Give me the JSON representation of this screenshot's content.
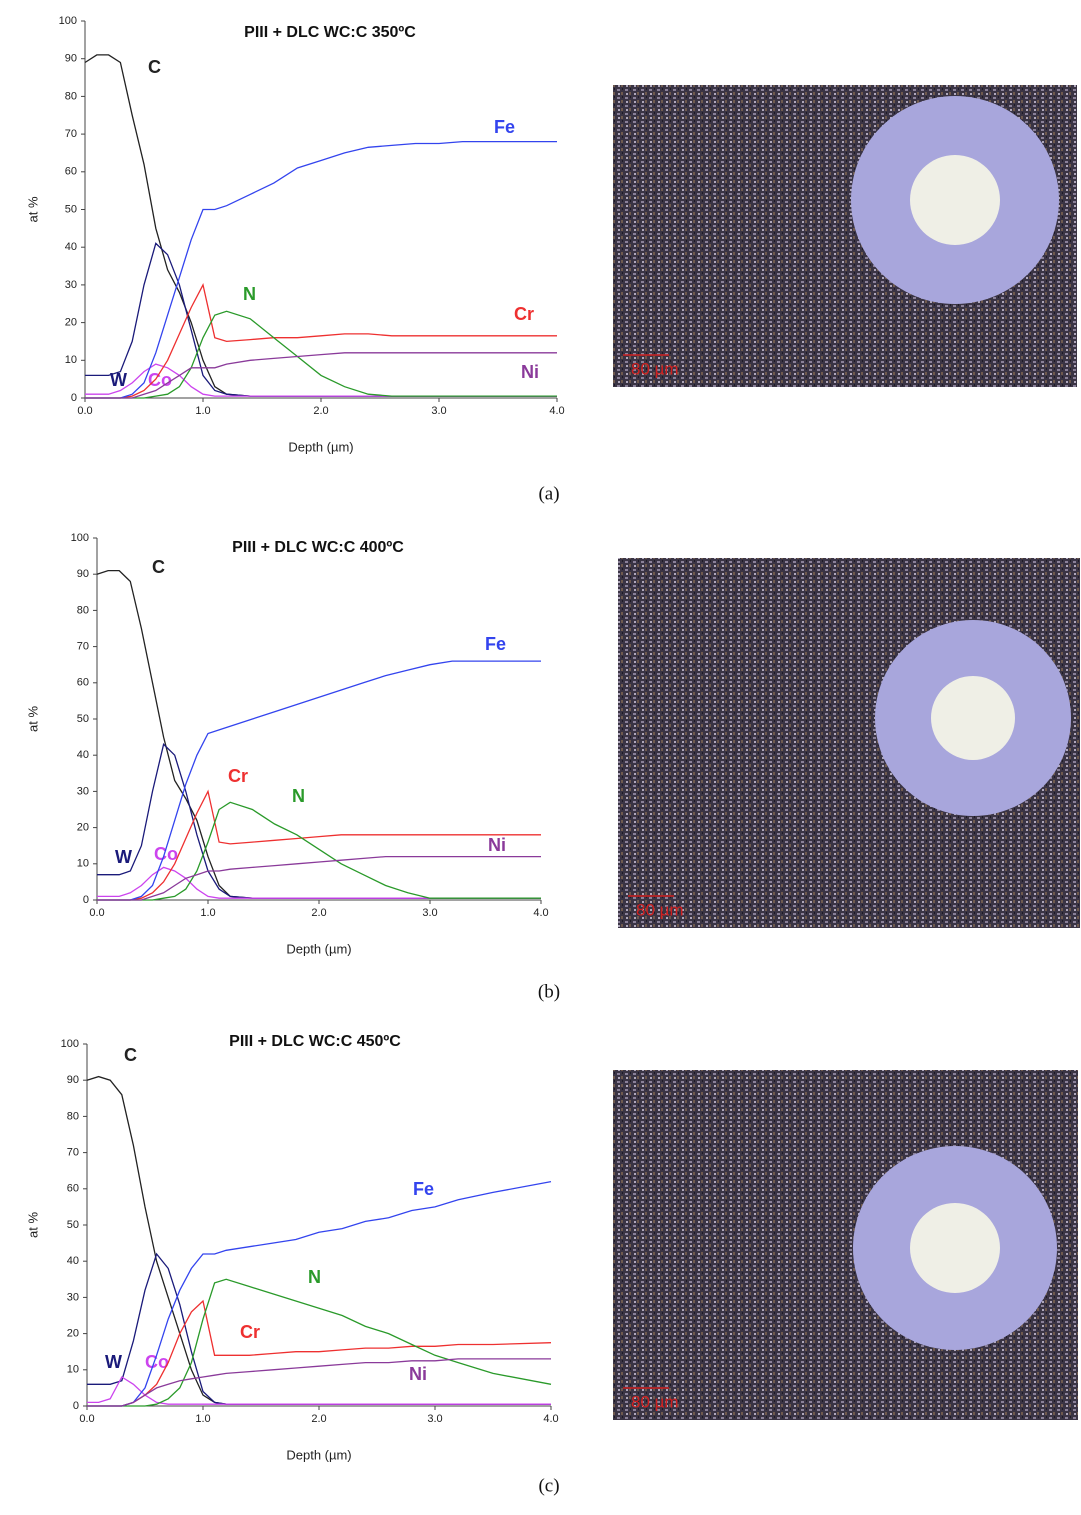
{
  "chart_data": [
    {
      "type": "line",
      "title": "PIII + DLC WC:C 350ºC",
      "x_label": "Depth (µm)",
      "y_label": "at %",
      "panel_label": "(a)",
      "image_scale_bar": "80 µm",
      "xlim": [
        0,
        4
      ],
      "ylim": [
        0,
        100
      ],
      "xticks": [
        {
          "value": 0,
          "label": "0.0"
        },
        {
          "value": 1,
          "label": "1.0"
        },
        {
          "value": 2,
          "label": "2.0"
        },
        {
          "value": 3,
          "label": "3.0"
        },
        {
          "value": 4,
          "label": "4.0"
        }
      ],
      "yticks": [
        0,
        10,
        20,
        30,
        40,
        50,
        60,
        70,
        80,
        90,
        100
      ],
      "x": [
        0,
        0.1,
        0.2,
        0.3,
        0.4,
        0.5,
        0.6,
        0.7,
        0.8,
        0.9,
        1.0,
        1.1,
        1.2,
        1.4,
        1.6,
        1.8,
        2.0,
        2.2,
        2.4,
        2.6,
        2.8,
        3.0,
        3.2,
        3.5,
        4.0
      ],
      "series": [
        {
          "name": "C",
          "color": "#222222",
          "values": [
            89,
            91,
            91,
            89,
            75,
            62,
            45,
            34,
            28,
            20,
            10,
            3,
            1,
            0.5,
            0.5,
            0.5,
            0.5,
            0.5,
            0.5,
            0.5,
            0.5,
            0.5,
            0.5,
            0.5,
            0.5
          ]
        },
        {
          "name": "W",
          "color": "#1a1a7a",
          "values": [
            6,
            6,
            6,
            7,
            15,
            30,
            41,
            38,
            30,
            18,
            6,
            2,
            1,
            0.5,
            0.5,
            0.5,
            0.5,
            0.5,
            0.5,
            0.5,
            0.5,
            0.5,
            0.5,
            0.5,
            0.5
          ]
        },
        {
          "name": "Co",
          "color": "#cc44ee",
          "values": [
            1,
            1,
            1,
            2,
            4,
            7,
            9,
            8,
            6,
            3,
            1,
            0.5,
            0.5,
            0.5,
            0.5,
            0.5,
            0.5,
            0.5,
            0.5,
            0.5,
            0.5,
            0.5,
            0.5,
            0.5,
            0.5
          ]
        },
        {
          "name": "Cr",
          "color": "#ee3030",
          "values": [
            0,
            0,
            0,
            0,
            0.5,
            2,
            5,
            10,
            17,
            24,
            30,
            16,
            15,
            15.5,
            16,
            16,
            16.5,
            17,
            17,
            16.5,
            16.5,
            16.5,
            16.5,
            16.5,
            16.5
          ]
        },
        {
          "name": "N",
          "color": "#2a9a2a",
          "values": [
            0,
            0,
            0,
            0,
            0,
            0,
            0.5,
            1,
            3,
            8,
            16,
            22,
            23,
            21,
            16,
            11,
            6,
            3,
            1,
            0.5,
            0.5,
            0.5,
            0.5,
            0.5,
            0.5
          ]
        },
        {
          "name": "Fe",
          "color": "#3344ee",
          "values": [
            0,
            0,
            0,
            0,
            1,
            4,
            12,
            22,
            32,
            42,
            50,
            50,
            51,
            54,
            57,
            61,
            63,
            65,
            66.5,
            67,
            67.5,
            67.5,
            68,
            68,
            68
          ]
        },
        {
          "name": "Ni",
          "color": "#8a3a9a",
          "values": [
            0,
            0,
            0,
            0,
            0,
            1,
            2,
            4,
            6,
            8,
            8,
            8,
            9,
            10,
            10.5,
            11,
            11.5,
            12,
            12,
            12,
            12,
            12,
            12,
            12,
            12
          ]
        }
      ]
    },
    {
      "type": "line",
      "title": "PIII + DLC WC:C 400ºC",
      "x_label": "Depth (µm)",
      "y_label": "at %",
      "panel_label": "(b)",
      "image_scale_bar": "80 µm",
      "xlim": [
        0,
        4
      ],
      "ylim": [
        0,
        100
      ],
      "xticks": [
        {
          "value": 0,
          "label": "0.0"
        },
        {
          "value": 1,
          "label": "1.0"
        },
        {
          "value": 2,
          "label": "2.0"
        },
        {
          "value": 3,
          "label": "3.0"
        },
        {
          "value": 4,
          "label": "4.0"
        }
      ],
      "yticks": [
        0,
        10,
        20,
        30,
        40,
        50,
        60,
        70,
        80,
        90,
        100
      ],
      "x": [
        0,
        0.1,
        0.2,
        0.3,
        0.4,
        0.5,
        0.6,
        0.7,
        0.8,
        0.9,
        1.0,
        1.1,
        1.2,
        1.4,
        1.6,
        1.8,
        2.0,
        2.2,
        2.4,
        2.6,
        2.8,
        3.0,
        3.2,
        3.5,
        4.0
      ],
      "series": [
        {
          "name": "C",
          "color": "#222222",
          "values": [
            90,
            91,
            91,
            88,
            75,
            60,
            45,
            33,
            28,
            22,
            12,
            4,
            1,
            0.5,
            0.5,
            0.5,
            0.5,
            0.5,
            0.5,
            0.5,
            0.5,
            0.5,
            0.5,
            0.5,
            0.5
          ]
        },
        {
          "name": "W",
          "color": "#1a1a7a",
          "values": [
            7,
            7,
            7,
            8,
            15,
            30,
            43,
            40,
            30,
            18,
            8,
            3,
            1,
            0.5,
            0.5,
            0.5,
            0.5,
            0.5,
            0.5,
            0.5,
            0.5,
            0.5,
            0.5,
            0.5,
            0.5
          ]
        },
        {
          "name": "Co",
          "color": "#cc44ee",
          "values": [
            1,
            1,
            1,
            2,
            4,
            7,
            9,
            8,
            6,
            3,
            1,
            0.5,
            0.5,
            0.5,
            0.5,
            0.5,
            0.5,
            0.5,
            0.5,
            0.5,
            0.5,
            0.5,
            0.5,
            0.5,
            0.5
          ]
        },
        {
          "name": "Cr",
          "color": "#ee3030",
          "values": [
            0,
            0,
            0,
            0,
            0.5,
            2,
            5,
            10,
            17,
            24,
            30,
            16,
            15.5,
            16,
            16.5,
            17,
            17.5,
            18,
            18,
            18,
            18,
            18,
            18,
            18,
            18
          ]
        },
        {
          "name": "N",
          "color": "#2a9a2a",
          "values": [
            0,
            0,
            0,
            0,
            0,
            0,
            0.5,
            1,
            3,
            8,
            16,
            25,
            27,
            25,
            21,
            18,
            14,
            10,
            7,
            4,
            2,
            0.5,
            0.5,
            0.5,
            0.5
          ]
        },
        {
          "name": "Fe",
          "color": "#3344ee",
          "values": [
            0,
            0,
            0,
            0,
            1,
            4,
            12,
            22,
            32,
            40,
            46,
            47,
            48,
            50,
            52,
            54,
            56,
            58,
            60,
            62,
            63.5,
            65,
            66,
            66,
            66
          ]
        },
        {
          "name": "Ni",
          "color": "#8a3a9a",
          "values": [
            0,
            0,
            0,
            0,
            0,
            1,
            2,
            4,
            6,
            7,
            8,
            8,
            8.5,
            9,
            9.5,
            10,
            10.5,
            11,
            11.5,
            12,
            12,
            12,
            12,
            12,
            12
          ]
        }
      ]
    },
    {
      "type": "line",
      "title": "PIII + DLC WC:C 450ºC",
      "x_label": "Depth (µm)",
      "y_label": "at %",
      "panel_label": "(c)",
      "image_scale_bar": "80 µm",
      "xlim": [
        0,
        4
      ],
      "ylim": [
        0,
        100
      ],
      "xticks": [
        {
          "value": 0,
          "label": "0.0"
        },
        {
          "value": 1,
          "label": "1.0"
        },
        {
          "value": 2,
          "label": "2.0"
        },
        {
          "value": 3,
          "label": "3.0"
        },
        {
          "value": 4,
          "label": "4.0"
        }
      ],
      "yticks": [
        0,
        10,
        20,
        30,
        40,
        50,
        60,
        70,
        80,
        90,
        100
      ],
      "x": [
        0,
        0.1,
        0.2,
        0.3,
        0.4,
        0.5,
        0.6,
        0.7,
        0.8,
        0.9,
        1.0,
        1.1,
        1.2,
        1.4,
        1.6,
        1.8,
        2.0,
        2.2,
        2.4,
        2.6,
        2.8,
        3.0,
        3.2,
        3.5,
        4.0
      ],
      "series": [
        {
          "name": "C",
          "color": "#222222",
          "values": [
            90,
            91,
            90,
            86,
            72,
            55,
            40,
            30,
            20,
            10,
            3,
            1,
            0.5,
            0.5,
            0.5,
            0.5,
            0.5,
            0.5,
            0.5,
            0.5,
            0.5,
            0.5,
            0.5,
            0.5,
            0.5
          ]
        },
        {
          "name": "W",
          "color": "#1a1a7a",
          "values": [
            6,
            6,
            6,
            7,
            18,
            32,
            42,
            38,
            28,
            15,
            4,
            1,
            0.5,
            0.5,
            0.5,
            0.5,
            0.5,
            0.5,
            0.5,
            0.5,
            0.5,
            0.5,
            0.5,
            0.5,
            0.5
          ]
        },
        {
          "name": "Co",
          "color": "#cc44ee",
          "values": [
            1,
            1,
            2,
            8,
            6,
            3,
            1,
            0.5,
            0.5,
            0.5,
            0.5,
            0.5,
            0.5,
            0.5,
            0.5,
            0.5,
            0.5,
            0.5,
            0.5,
            0.5,
            0.5,
            0.5,
            0.5,
            0.5,
            0.5
          ]
        },
        {
          "name": "Cr",
          "color": "#ee3030",
          "values": [
            0,
            0,
            0,
            0,
            1,
            3,
            6,
            12,
            20,
            26,
            29,
            14,
            14,
            14,
            14.5,
            15,
            15,
            15.5,
            16,
            16,
            16.5,
            16.5,
            17,
            17,
            17.5
          ]
        },
        {
          "name": "N",
          "color": "#2a9a2a",
          "values": [
            0,
            0,
            0,
            0,
            0,
            0,
            0.5,
            2,
            5,
            12,
            24,
            34,
            35,
            33,
            31,
            29,
            27,
            25,
            22,
            20,
            17,
            14,
            12,
            9,
            6
          ]
        },
        {
          "name": "Fe",
          "color": "#3344ee",
          "values": [
            0,
            0,
            0,
            0,
            1,
            5,
            14,
            24,
            32,
            38,
            42,
            42,
            43,
            44,
            45,
            46,
            48,
            49,
            51,
            52,
            54,
            55,
            57,
            59,
            62
          ]
        },
        {
          "name": "Ni",
          "color": "#8a3a9a",
          "values": [
            0,
            0,
            0,
            0,
            1,
            3,
            5,
            6,
            7,
            7.5,
            8,
            8.5,
            9,
            9.5,
            10,
            10.5,
            11,
            11.5,
            12,
            12,
            12.5,
            12.5,
            13,
            13,
            13
          ]
        }
      ]
    }
  ]
}
